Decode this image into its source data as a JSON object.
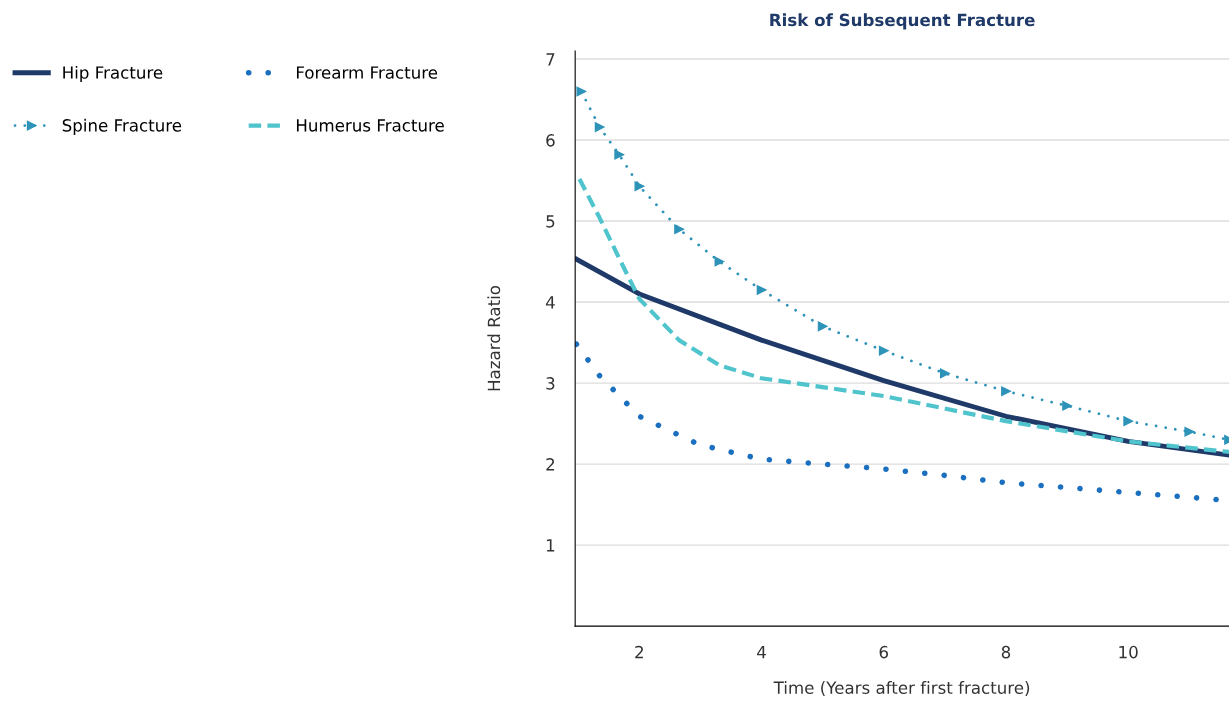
{
  "chart_data": {
    "type": "line",
    "title": "Risk of Subsequent Fracture",
    "xlabel": "Time (Years after first fracture)",
    "ylabel": "Hazard Ratio",
    "xlim": [
      0.95,
      11.65
    ],
    "ylim": [
      0,
      7.1
    ],
    "xticks": [
      2,
      4,
      6,
      8,
      10
    ],
    "yticks": [
      1,
      2,
      3,
      4,
      5,
      6,
      7
    ],
    "grid": "y",
    "legend": "top left",
    "series": [
      {
        "name": "Hip Fracture",
        "color": "#1f3a68",
        "line_style": "solid",
        "marker": "none",
        "x": [
          0.97,
          2,
          4,
          6,
          8,
          10,
          11.65
        ],
        "values": [
          4.53,
          4.1,
          3.53,
          3.03,
          2.59,
          2.28,
          2.11
        ]
      },
      {
        "name": "Spine Fracture",
        "color": "#2e93b8",
        "line_style": "dotted",
        "marker": "triangle",
        "x": [
          1.05,
          1.35,
          1.67,
          2,
          2.65,
          3.31,
          4,
          5,
          6,
          7,
          8,
          9,
          10,
          11,
          11.65
        ],
        "values": [
          6.6,
          6.16,
          5.82,
          5.43,
          4.9,
          4.5,
          4.15,
          3.7,
          3.4,
          3.12,
          2.9,
          2.72,
          2.53,
          2.4,
          2.3
        ]
      },
      {
        "name": "Forearm Fracture",
        "color": "#1a6fbf",
        "line_style": "dotted",
        "marker": "none",
        "x": [
          0.97,
          1.35,
          2,
          2.98,
          4,
          5,
          6,
          7,
          8,
          9,
          10,
          11,
          11.65
        ],
        "values": [
          3.48,
          3.09,
          2.59,
          2.24,
          2.06,
          2.0,
          1.94,
          1.86,
          1.77,
          1.71,
          1.65,
          1.59,
          1.55
        ]
      },
      {
        "name": "Humerus Fracture",
        "color": "#4fc4cc",
        "line_style": "dashed",
        "marker": "none",
        "x": [
          1.02,
          1.35,
          1.67,
          2,
          2.65,
          3.31,
          4,
          6,
          8,
          10,
          11.65
        ],
        "values": [
          5.52,
          5.04,
          4.54,
          4.04,
          3.53,
          3.22,
          3.06,
          2.84,
          2.53,
          2.28,
          2.15
        ]
      }
    ]
  }
}
